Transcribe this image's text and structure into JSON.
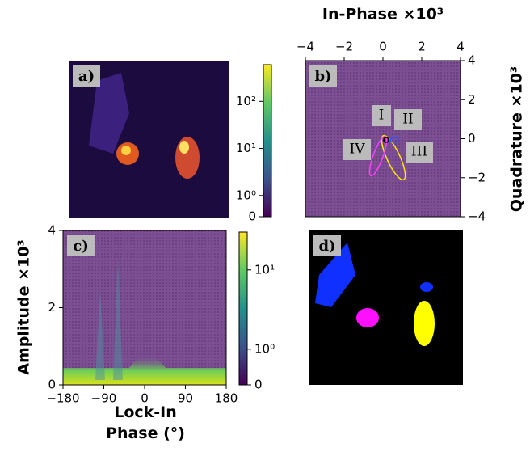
{
  "chart_data": [
    {
      "type": "image",
      "label": "a)"
    },
    {
      "type": "heatmap",
      "label": "b)",
      "xlabel": "In-Phase ×10³",
      "ylabel": "Quadrature ×10³",
      "xlim": [
        -4,
        4
      ],
      "xticks": [
        {
          "value": -4,
          "label": "−4"
        },
        {
          "value": -2,
          "label": "−2"
        },
        0,
        2,
        4
      ],
      "ylim": [
        -4,
        4
      ],
      "yticks": [
        {
          "value": -4,
          "label": "−4"
        },
        {
          "value": -2,
          "label": "−2"
        },
        0,
        2,
        4
      ],
      "annotations": [
        "I",
        "II",
        "III",
        "IV"
      ],
      "colorbar": {
        "scale": "symlog",
        "clim": [
          0,
          600
        ],
        "ticks": [
          0,
          {
            "value": 1,
            "label": "10⁰"
          },
          {
            "value": 10,
            "label": "10¹"
          },
          {
            "value": 100,
            "label": "10²"
          }
        ]
      }
    },
    {
      "type": "heatmap",
      "label": "c)",
      "xlabel": "Lock-In\nPhase (°)",
      "ylabel": "Amplitude ×10³",
      "xlim": [
        -180,
        180
      ],
      "xticks": [
        {
          "value": -180,
          "label": "−180"
        },
        {
          "value": -90,
          "label": "−90"
        },
        0,
        90,
        180
      ],
      "ylim": [
        0,
        4
      ],
      "yticks": [
        0,
        2,
        4
      ],
      "colorbar": {
        "scale": "symlog",
        "clim": [
          0,
          30
        ],
        "ticks": [
          0,
          {
            "value": 1,
            "label": "10⁰"
          },
          {
            "value": 10,
            "label": "10¹"
          }
        ]
      }
    },
    {
      "type": "image",
      "label": "d)"
    }
  ]
}
